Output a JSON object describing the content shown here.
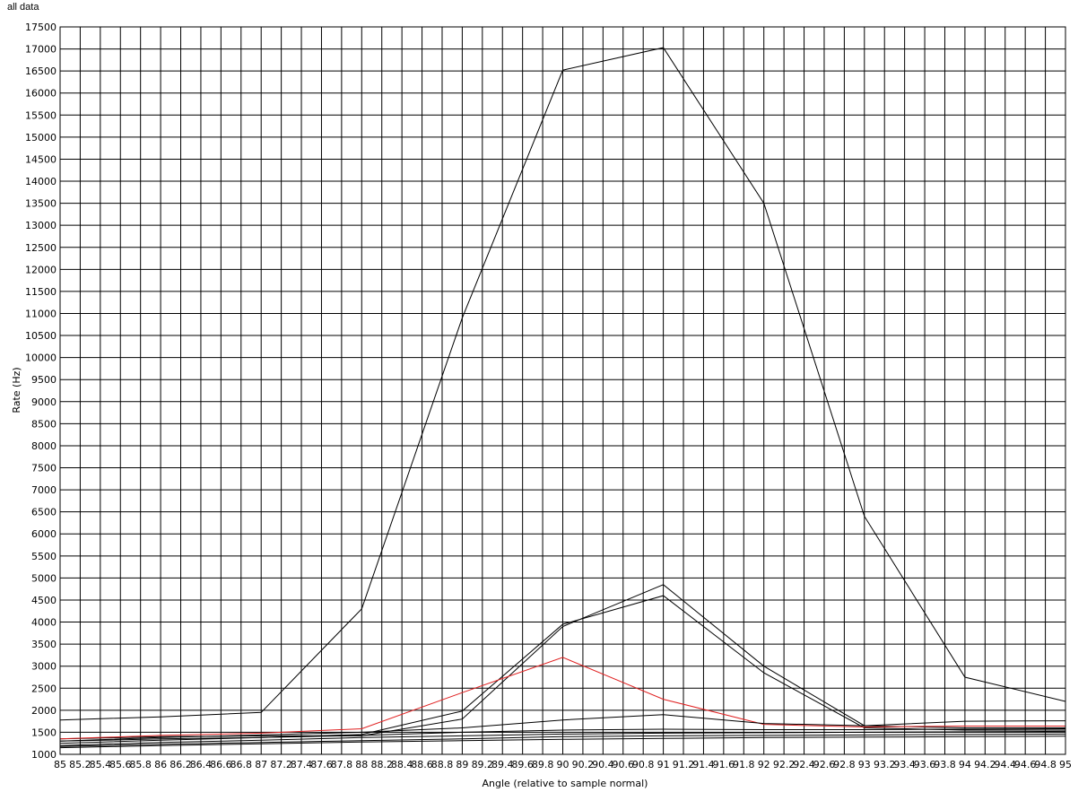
{
  "chart_data": {
    "type": "line",
    "title": "all data",
    "xlabel": "Angle (relative to sample normal)",
    "ylabel": "Rate (Hz)",
    "xlim": [
      85,
      95
    ],
    "ylim": [
      1000,
      17500
    ],
    "grid": true,
    "x_ticks": [
      "85",
      "85.2",
      "85.4",
      "85.6",
      "85.8",
      "86",
      "86.2",
      "86.4",
      "86.6",
      "86.8",
      "87",
      "87.2",
      "87.4",
      "87.6",
      "87.8",
      "88",
      "88.2",
      "88.4",
      "88.6",
      "88.8",
      "89",
      "89.2",
      "89.4",
      "89.6",
      "89.8",
      "90",
      "90.2",
      "90.4",
      "90.6",
      "90.8",
      "91",
      "91.2",
      "91.4",
      "91.6",
      "91.8",
      "92",
      "92.2",
      "92.4",
      "92.6",
      "92.8",
      "93",
      "93.2",
      "93.4",
      "93.6",
      "93.8",
      "94",
      "94.2",
      "94.4",
      "94.6",
      "94.8",
      "95"
    ],
    "y_ticks": [
      "1000",
      "1500",
      "2000",
      "2500",
      "3000",
      "3500",
      "4000",
      "4500",
      "5000",
      "5500",
      "6000",
      "6500",
      "7000",
      "7500",
      "8000",
      "8500",
      "9000",
      "9500",
      "10000",
      "10500",
      "11000",
      "11500",
      "12000",
      "12500",
      "13000",
      "13500",
      "14000",
      "14500",
      "15000",
      "15500",
      "16000",
      "16500",
      "17000",
      "17500"
    ],
    "series": [
      {
        "color": "#000000",
        "x": [
          85,
          86,
          87,
          88,
          89,
          90,
          91,
          92,
          93,
          94,
          95
        ],
        "values": [
          1780,
          1850,
          1950,
          4300,
          10900,
          16520,
          17030,
          13500,
          6400,
          2750,
          2200
        ]
      },
      {
        "color": "#000000",
        "x": [
          85,
          86,
          87,
          88,
          89,
          90,
          91,
          92,
          93,
          94,
          95
        ],
        "values": [
          1350,
          1400,
          1420,
          1420,
          1800,
          3900,
          4850,
          3000,
          1650,
          1600,
          1600
        ]
      },
      {
        "color": "#000000",
        "x": [
          85,
          86,
          87,
          88,
          89,
          90,
          91,
          92,
          93,
          94,
          95
        ],
        "values": [
          1300,
          1350,
          1380,
          1450,
          1980,
          3950,
          4600,
          2850,
          1600,
          1550,
          1550
        ]
      },
      {
        "color": "#e02020",
        "x": [
          85,
          86,
          87,
          88,
          89,
          90,
          91,
          92,
          93,
          94,
          95
        ],
        "values": [
          1350,
          1430,
          1480,
          1580,
          2400,
          3200,
          2250,
          1680,
          1620,
          1640,
          1640
        ]
      },
      {
        "color": "#000000",
        "x": [
          85,
          86,
          87,
          88,
          89,
          90,
          91,
          92,
          93,
          94,
          95
        ],
        "values": [
          1300,
          1380,
          1440,
          1500,
          1600,
          1780,
          1900,
          1700,
          1650,
          1750,
          1760
        ]
      },
      {
        "color": "#000000",
        "x": [
          85,
          86,
          87,
          88,
          89,
          90,
          91,
          92,
          93,
          94,
          95
        ],
        "values": [
          1250,
          1320,
          1380,
          1430,
          1500,
          1550,
          1570,
          1560,
          1560,
          1570,
          1580
        ]
      },
      {
        "color": "#000000",
        "x": [
          85,
          86,
          87,
          88,
          89,
          90,
          91,
          92,
          93,
          94,
          95
        ],
        "values": [
          1200,
          1270,
          1320,
          1380,
          1420,
          1460,
          1480,
          1490,
          1500,
          1510,
          1520
        ]
      },
      {
        "color": "#000000",
        "x": [
          85,
          86,
          87,
          88,
          89,
          90,
          91,
          92,
          93,
          94,
          95
        ],
        "values": [
          1180,
          1230,
          1270,
          1310,
          1350,
          1400,
          1420,
          1430,
          1440,
          1450,
          1460
        ]
      },
      {
        "color": "#000000",
        "x": [
          85,
          86,
          87,
          88,
          89,
          90,
          91,
          92,
          93,
          94,
          95
        ],
        "values": [
          1150,
          1200,
          1240,
          1280,
          1310,
          1340,
          1360,
          1380,
          1390,
          1400,
          1410
        ]
      }
    ]
  }
}
